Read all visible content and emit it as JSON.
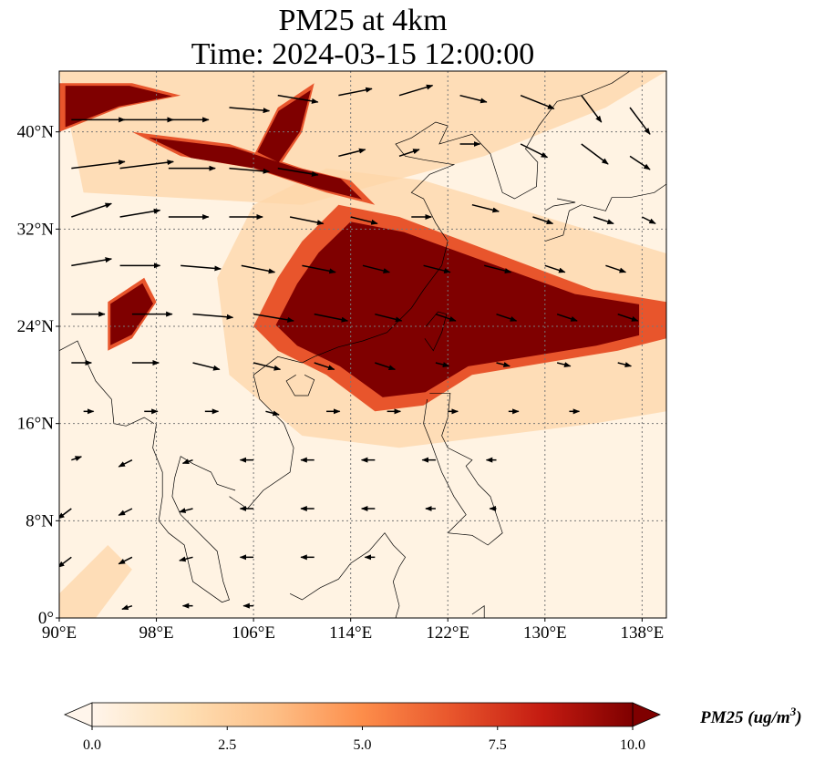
{
  "title_line1": "PM25 at 4km",
  "title_line2": "Time: 2024-03-15 12:00:00",
  "map": {
    "lon_range": [
      90,
      140
    ],
    "lat_range": [
      0,
      45
    ],
    "lon_ticks": [
      90,
      98,
      106,
      114,
      122,
      130,
      138
    ],
    "lat_ticks": [
      0,
      8,
      16,
      24,
      32,
      40
    ],
    "lon_tick_labels": [
      "90°E",
      "98°E",
      "106°E",
      "114°E",
      "122°E",
      "130°E",
      "138°E"
    ],
    "lat_tick_labels": [
      "0°",
      "8°N",
      "16°N",
      "24°N",
      "32°N",
      "40°N"
    ],
    "gridlines": "dotted",
    "field": "PM25",
    "high_concentration_regions": [
      {
        "name": "central-east-china-plume",
        "polygon": [
          [
            108,
            22
          ],
          [
            112,
            20
          ],
          [
            116,
            17
          ],
          [
            120,
            17.5
          ],
          [
            124,
            20
          ],
          [
            130,
            21
          ],
          [
            136,
            22
          ],
          [
            140,
            23
          ],
          [
            140,
            26
          ],
          [
            134,
            27
          ],
          [
            126,
            30
          ],
          [
            118,
            33
          ],
          [
            113,
            34
          ],
          [
            110,
            31
          ],
          [
            108,
            28
          ],
          [
            106,
            24
          ]
        ]
      },
      {
        "name": "north-china-band",
        "polygon": [
          [
            96,
            40
          ],
          [
            104,
            39
          ],
          [
            110,
            37
          ],
          [
            114,
            36
          ],
          [
            116,
            34
          ],
          [
            112,
            35
          ],
          [
            106,
            37
          ],
          [
            100,
            38
          ]
        ]
      },
      {
        "name": "northwest-edge",
        "polygon": [
          [
            90,
            40
          ],
          [
            95,
            42
          ],
          [
            100,
            43
          ],
          [
            96,
            44
          ],
          [
            90,
            44
          ]
        ]
      },
      {
        "name": "yunnan-myanmar",
        "polygon": [
          [
            94,
            26
          ],
          [
            97,
            28
          ],
          [
            98,
            26
          ],
          [
            96,
            23
          ],
          [
            94,
            22
          ]
        ]
      },
      {
        "name": "ordos-streak",
        "polygon": [
          [
            106,
            38
          ],
          [
            108,
            42
          ],
          [
            111,
            44
          ],
          [
            110,
            40
          ],
          [
            108,
            37
          ]
        ]
      }
    ],
    "moderate_regions": [
      {
        "name": "south-china-sea-halo",
        "polygon": [
          [
            104,
            20
          ],
          [
            110,
            15
          ],
          [
            118,
            14
          ],
          [
            126,
            15
          ],
          [
            134,
            16
          ],
          [
            140,
            17
          ],
          [
            140,
            30
          ],
          [
            130,
            33
          ],
          [
            120,
            36
          ],
          [
            112,
            37
          ],
          [
            106,
            34
          ],
          [
            103,
            28
          ]
        ]
      },
      {
        "name": "southwest-corner",
        "polygon": [
          [
            90,
            2
          ],
          [
            94,
            6
          ],
          [
            96,
            4
          ],
          [
            93,
            0
          ],
          [
            90,
            0
          ]
        ]
      },
      {
        "name": "northern-strip",
        "polygon": [
          [
            92,
            35
          ],
          [
            110,
            34
          ],
          [
            125,
            38
          ],
          [
            135,
            42
          ],
          [
            140,
            45
          ],
          [
            90,
            45
          ]
        ]
      }
    ],
    "wind_arrows": [
      {
        "lon": 91,
        "lat": 41,
        "dx": 8,
        "dy": 0
      },
      {
        "lon": 95,
        "lat": 41,
        "dx": 8,
        "dy": 0
      },
      {
        "lon": 99,
        "lat": 41,
        "dx": 6,
        "dy": 0
      },
      {
        "lon": 104,
        "lat": 42,
        "dx": 6,
        "dy": -0.5
      },
      {
        "lon": 108,
        "lat": 43,
        "dx": 6,
        "dy": -1
      },
      {
        "lon": 113,
        "lat": 43,
        "dx": 5,
        "dy": 1
      },
      {
        "lon": 118,
        "lat": 43,
        "dx": 5,
        "dy": 1.5
      },
      {
        "lon": 123,
        "lat": 43,
        "dx": 4,
        "dy": -1
      },
      {
        "lon": 128,
        "lat": 43,
        "dx": 5,
        "dy": -2
      },
      {
        "lon": 133,
        "lat": 43,
        "dx": 3,
        "dy": -4
      },
      {
        "lon": 137,
        "lat": 42,
        "dx": 3,
        "dy": -4
      },
      {
        "lon": 91,
        "lat": 37,
        "dx": 8,
        "dy": 1
      },
      {
        "lon": 95,
        "lat": 37,
        "dx": 8,
        "dy": 1
      },
      {
        "lon": 99,
        "lat": 37,
        "dx": 7,
        "dy": 0
      },
      {
        "lon": 104,
        "lat": 37,
        "dx": 6,
        "dy": -0.5
      },
      {
        "lon": 108,
        "lat": 37,
        "dx": 6,
        "dy": -1
      },
      {
        "lon": 113,
        "lat": 38,
        "dx": 4,
        "dy": 1
      },
      {
        "lon": 118,
        "lat": 38,
        "dx": 3,
        "dy": 1
      },
      {
        "lon": 123,
        "lat": 39,
        "dx": 3,
        "dy": 0
      },
      {
        "lon": 128,
        "lat": 39,
        "dx": 4,
        "dy": -2
      },
      {
        "lon": 133,
        "lat": 39,
        "dx": 4,
        "dy": -3
      },
      {
        "lon": 137,
        "lat": 38,
        "dx": 3,
        "dy": -2
      },
      {
        "lon": 91,
        "lat": 33,
        "dx": 6,
        "dy": 2
      },
      {
        "lon": 95,
        "lat": 33,
        "dx": 6,
        "dy": 1
      },
      {
        "lon": 99,
        "lat": 33,
        "dx": 6,
        "dy": 0
      },
      {
        "lon": 104,
        "lat": 33,
        "dx": 5,
        "dy": 0
      },
      {
        "lon": 109,
        "lat": 33,
        "dx": 5,
        "dy": -1
      },
      {
        "lon": 114,
        "lat": 33,
        "dx": 4,
        "dy": -1
      },
      {
        "lon": 119,
        "lat": 33,
        "dx": 3,
        "dy": 0
      },
      {
        "lon": 124,
        "lat": 34,
        "dx": 4,
        "dy": -1
      },
      {
        "lon": 129,
        "lat": 33,
        "dx": 3,
        "dy": -1
      },
      {
        "lon": 134,
        "lat": 33,
        "dx": 3,
        "dy": -1
      },
      {
        "lon": 138,
        "lat": 33,
        "dx": 2,
        "dy": -1
      },
      {
        "lon": 91,
        "lat": 29,
        "dx": 6,
        "dy": 1
      },
      {
        "lon": 95,
        "lat": 29,
        "dx": 6,
        "dy": 0
      },
      {
        "lon": 100,
        "lat": 29,
        "dx": 6,
        "dy": -0.5
      },
      {
        "lon": 105,
        "lat": 29,
        "dx": 5,
        "dy": -1
      },
      {
        "lon": 110,
        "lat": 29,
        "dx": 5,
        "dy": -1
      },
      {
        "lon": 115,
        "lat": 29,
        "dx": 4,
        "dy": -1
      },
      {
        "lon": 120,
        "lat": 29,
        "dx": 4,
        "dy": -1
      },
      {
        "lon": 125,
        "lat": 29,
        "dx": 4,
        "dy": -1
      },
      {
        "lon": 130,
        "lat": 29,
        "dx": 3,
        "dy": -1
      },
      {
        "lon": 135,
        "lat": 29,
        "dx": 3,
        "dy": -1
      },
      {
        "lon": 91,
        "lat": 25,
        "dx": 5,
        "dy": 0
      },
      {
        "lon": 96,
        "lat": 25,
        "dx": 6,
        "dy": 0
      },
      {
        "lon": 101,
        "lat": 25,
        "dx": 6,
        "dy": -0.5
      },
      {
        "lon": 106,
        "lat": 25,
        "dx": 6,
        "dy": -1
      },
      {
        "lon": 111,
        "lat": 25,
        "dx": 5,
        "dy": -1
      },
      {
        "lon": 116,
        "lat": 25,
        "dx": 4,
        "dy": -1
      },
      {
        "lon": 121,
        "lat": 25,
        "dx": 3,
        "dy": -1
      },
      {
        "lon": 126,
        "lat": 25,
        "dx": 3,
        "dy": -1
      },
      {
        "lon": 131,
        "lat": 25,
        "dx": 3,
        "dy": -1
      },
      {
        "lon": 136,
        "lat": 25,
        "dx": 3,
        "dy": -1
      },
      {
        "lon": 91,
        "lat": 21,
        "dx": 3,
        "dy": 0
      },
      {
        "lon": 96,
        "lat": 21,
        "dx": 4,
        "dy": 0
      },
      {
        "lon": 101,
        "lat": 21,
        "dx": 4,
        "dy": -1
      },
      {
        "lon": 106,
        "lat": 21,
        "dx": 4,
        "dy": -1
      },
      {
        "lon": 111,
        "lat": 21,
        "dx": 3,
        "dy": -1
      },
      {
        "lon": 116,
        "lat": 21,
        "dx": 3,
        "dy": -1
      },
      {
        "lon": 121,
        "lat": 21,
        "dx": 2,
        "dy": -0.5
      },
      {
        "lon": 126,
        "lat": 21,
        "dx": 2,
        "dy": -0.5
      },
      {
        "lon": 131,
        "lat": 21,
        "dx": 2,
        "dy": -0.5
      },
      {
        "lon": 136,
        "lat": 21,
        "dx": 2,
        "dy": -0.5
      },
      {
        "lon": 92,
        "lat": 17,
        "dx": 1.5,
        "dy": 0
      },
      {
        "lon": 97,
        "lat": 17,
        "dx": 2,
        "dy": 0
      },
      {
        "lon": 102,
        "lat": 17,
        "dx": 2,
        "dy": 0
      },
      {
        "lon": 107,
        "lat": 17,
        "dx": 2,
        "dy": -0.5
      },
      {
        "lon": 112,
        "lat": 17,
        "dx": 2,
        "dy": 0
      },
      {
        "lon": 117,
        "lat": 17,
        "dx": 2,
        "dy": 0
      },
      {
        "lon": 122,
        "lat": 17,
        "dx": 1.5,
        "dy": 0
      },
      {
        "lon": 127,
        "lat": 17,
        "dx": 1.5,
        "dy": 0
      },
      {
        "lon": 132,
        "lat": 17,
        "dx": 1.5,
        "dy": 0
      },
      {
        "lon": 91,
        "lat": 13,
        "dx": 1.5,
        "dy": 0.5
      },
      {
        "lon": 96,
        "lat": 13,
        "dx": -2,
        "dy": -1
      },
      {
        "lon": 101,
        "lat": 13,
        "dx": -1.5,
        "dy": -0.5
      },
      {
        "lon": 106,
        "lat": 13,
        "dx": -2,
        "dy": 0
      },
      {
        "lon": 111,
        "lat": 13,
        "dx": -2,
        "dy": 0
      },
      {
        "lon": 116,
        "lat": 13,
        "dx": -2,
        "dy": 0
      },
      {
        "lon": 121,
        "lat": 13,
        "dx": -2,
        "dy": 0
      },
      {
        "lon": 126,
        "lat": 13,
        "dx": -1.5,
        "dy": 0
      },
      {
        "lon": 91,
        "lat": 9,
        "dx": -2,
        "dy": -1.5
      },
      {
        "lon": 96,
        "lat": 9,
        "dx": -2,
        "dy": -1
      },
      {
        "lon": 101,
        "lat": 9,
        "dx": -2,
        "dy": -0.5
      },
      {
        "lon": 106,
        "lat": 9,
        "dx": -2,
        "dy": 0
      },
      {
        "lon": 111,
        "lat": 9,
        "dx": -2,
        "dy": 0
      },
      {
        "lon": 116,
        "lat": 9,
        "dx": -2,
        "dy": 0
      },
      {
        "lon": 121,
        "lat": 9,
        "dx": -1.5,
        "dy": 0
      },
      {
        "lon": 126,
        "lat": 9,
        "dx": -1,
        "dy": 0
      },
      {
        "lon": 91,
        "lat": 5,
        "dx": -2,
        "dy": -1.5
      },
      {
        "lon": 96,
        "lat": 5,
        "dx": -2,
        "dy": -1
      },
      {
        "lon": 101,
        "lat": 5,
        "dx": -2,
        "dy": -0.5
      },
      {
        "lon": 106,
        "lat": 5,
        "dx": -2,
        "dy": 0
      },
      {
        "lon": 111,
        "lat": 5,
        "dx": -2,
        "dy": 0
      },
      {
        "lon": 116,
        "lat": 5,
        "dx": -1.5,
        "dy": 0
      },
      {
        "lon": 96,
        "lat": 1,
        "dx": -1.5,
        "dy": -0.5
      },
      {
        "lon": 101,
        "lat": 1,
        "dx": -1.5,
        "dy": 0
      },
      {
        "lon": 106,
        "lat": 1,
        "dx": -1.5,
        "dy": 0
      }
    ]
  },
  "colorbar": {
    "min": 0,
    "max": 10,
    "ticks": [
      0,
      2.5,
      5,
      7.5,
      10
    ],
    "tick_labels": [
      "0.0",
      "2.5",
      "5.0",
      "7.5",
      "10.0"
    ],
    "extend": "both",
    "label": "PM25 (ug/m",
    "label_superscript": "3",
    "label_close": ")",
    "colors": [
      "#fff5eb",
      "#fee0b6",
      "#fdc088",
      "#fd8d4a",
      "#e8552c",
      "#c41b11",
      "#7f0000"
    ]
  }
}
